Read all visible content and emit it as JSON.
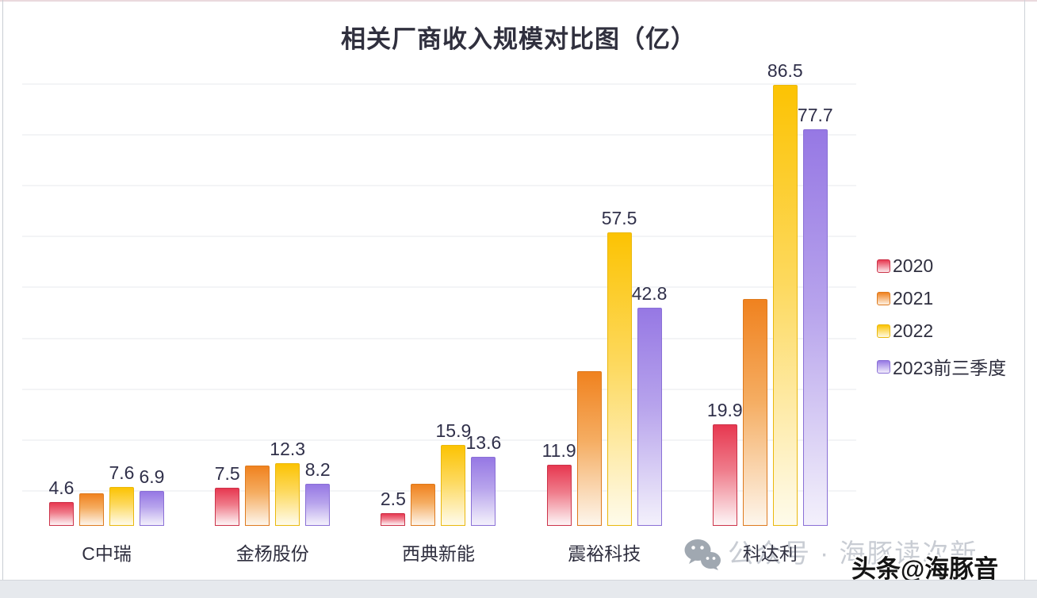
{
  "title": "相关厂商收入规模对比图（亿）",
  "legend": {
    "position": "right",
    "items": [
      {
        "label": "2020",
        "color": "#e73850"
      },
      {
        "label": "2021",
        "color": "#f0821f"
      },
      {
        "label": "2022",
        "color": "#fcc303"
      },
      {
        "label": "2023前三季度",
        "color": "#9678e4"
      }
    ]
  },
  "chart_data": {
    "type": "bar",
    "title": "相关厂商收入规模对比图（亿）",
    "categories": [
      "C中瑞",
      "金杨股份",
      "西典新能",
      "震裕科技",
      "科达利"
    ],
    "series": [
      {
        "name": "2020",
        "color": "#e73850",
        "values": [
          4.6,
          7.5,
          2.5,
          11.9,
          19.9
        ],
        "labels_visible": true,
        "values_estimated": false
      },
      {
        "name": "2021",
        "color": "#f0821f",
        "values": [
          6.4,
          11.8,
          8.3,
          30.3,
          44.5
        ],
        "labels_visible": false,
        "values_estimated": true
      },
      {
        "name": "2022",
        "color": "#fcc303",
        "values": [
          7.6,
          12.3,
          15.9,
          57.5,
          86.5
        ],
        "labels_visible": true,
        "values_estimated": false
      },
      {
        "name": "2023前三季度",
        "color": "#9678e4",
        "values": [
          6.9,
          8.2,
          13.6,
          42.8,
          77.7
        ],
        "labels_visible": true,
        "values_estimated": false
      }
    ],
    "xlabel": "",
    "ylabel": "",
    "ylim": [
      0,
      90
    ],
    "grid": true,
    "gridline_count": 9,
    "legend_position": "right",
    "value_label_format": "one-decimal"
  },
  "watermark": {
    "wechat_text": "公众号 · 海豚读次新",
    "toutiao_text": "头条@海豚音"
  }
}
